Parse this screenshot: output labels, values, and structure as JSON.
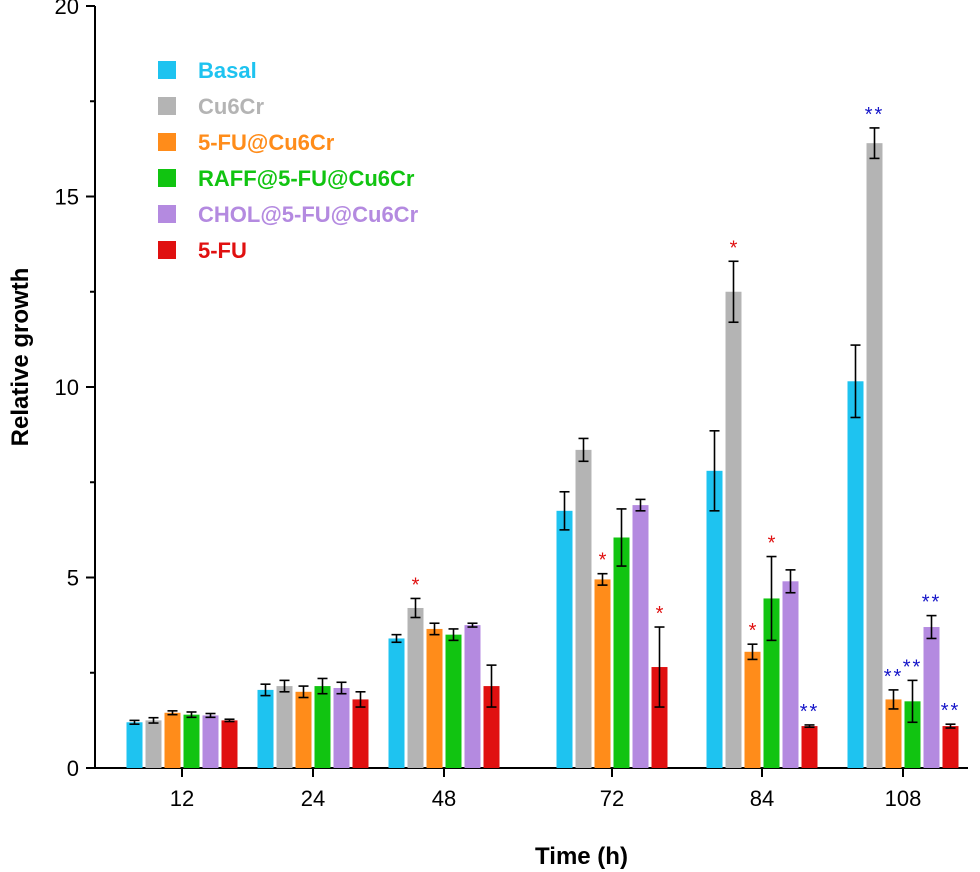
{
  "chart_data": {
    "type": "bar",
    "xlabel": "Time (h)",
    "ylabel": "Relative growth",
    "ylim": [
      0,
      20
    ],
    "yticks": [
      0,
      5,
      10,
      15,
      20
    ],
    "grid": false,
    "legend_position": "top-left",
    "categories": [
      "12",
      "24",
      "48",
      "72",
      "84",
      "108"
    ],
    "series": [
      {
        "name": "Basal",
        "color": "#1ec3f0",
        "values": [
          1.2,
          2.05,
          3.4,
          6.75,
          7.8,
          10.15
        ],
        "errors": [
          0.05,
          0.15,
          0.1,
          0.5,
          1.05,
          0.95
        ],
        "significance": [
          "",
          "",
          "",
          "",
          "",
          ""
        ]
      },
      {
        "name": "Cu6Cr",
        "color": "#b4b4b4",
        "values": [
          1.25,
          2.15,
          4.2,
          8.35,
          12.5,
          16.4
        ],
        "errors": [
          0.07,
          0.15,
          0.25,
          0.3,
          0.8,
          0.4
        ],
        "significance": [
          "",
          "",
          "*",
          "",
          "*",
          "**"
        ]
      },
      {
        "name": "5-FU@Cu6Cr",
        "color": "#ff8c1a",
        "values": [
          1.45,
          2.0,
          3.65,
          4.95,
          3.05,
          1.8
        ],
        "errors": [
          0.05,
          0.15,
          0.15,
          0.15,
          0.2,
          0.25
        ],
        "significance": [
          "",
          "",
          "",
          "*",
          "*",
          "**"
        ]
      },
      {
        "name": "RAFF@5-FU@Cu6Cr",
        "color": "#11c411",
        "values": [
          1.4,
          2.15,
          3.5,
          6.05,
          4.45,
          1.75
        ],
        "errors": [
          0.07,
          0.2,
          0.15,
          0.75,
          1.1,
          0.55
        ],
        "significance": [
          "",
          "",
          "",
          "",
          "*",
          "**"
        ]
      },
      {
        "name": "CHOL@5-FU@Cu6Cr",
        "color": "#b48ae0",
        "values": [
          1.38,
          2.1,
          3.75,
          6.9,
          4.9,
          3.7
        ],
        "errors": [
          0.05,
          0.15,
          0.05,
          0.15,
          0.3,
          0.3
        ],
        "significance": [
          "",
          "",
          "",
          "",
          "",
          "**"
        ]
      },
      {
        "name": "5-FU",
        "color": "#e01010",
        "values": [
          1.25,
          1.8,
          2.15,
          2.65,
          1.1,
          1.1
        ],
        "errors": [
          0.03,
          0.2,
          0.55,
          1.05,
          0.03,
          0.05
        ],
        "significance": [
          "",
          "",
          "",
          "*",
          "**",
          "**"
        ]
      }
    ],
    "significance_colors": {
      "*": "#e01010",
      "**": "#1414c8"
    }
  }
}
